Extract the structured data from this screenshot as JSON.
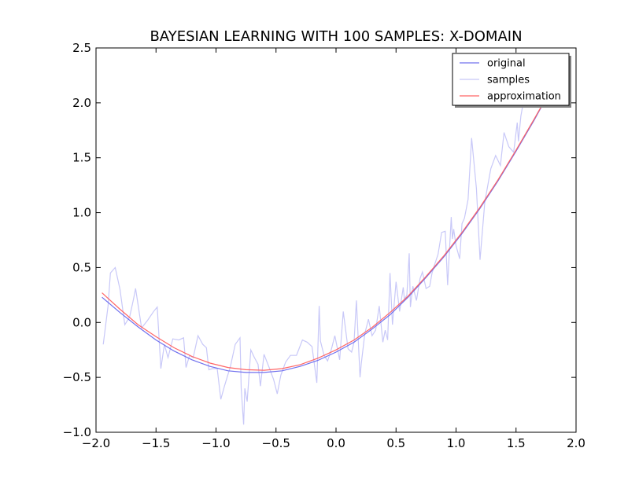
{
  "chart_data": {
    "type": "line",
    "title": "BAYESIAN LEARNING WITH 100 SAMPLES: X-DOMAIN",
    "xlabel": "",
    "ylabel": "",
    "xlim": [
      -2.0,
      2.0
    ],
    "ylim": [
      -1.0,
      2.5
    ],
    "xticks": [
      -2.0,
      -1.5,
      -1.0,
      -0.5,
      0.0,
      0.5,
      1.0,
      1.5,
      2.0
    ],
    "xtick_labels": [
      "−2.0",
      "−1.5",
      "−1.0",
      "−0.5",
      "0.0",
      "0.5",
      "1.0",
      "1.5",
      "2.0"
    ],
    "yticks": [
      -1.0,
      -0.5,
      0.0,
      0.5,
      1.0,
      1.5,
      2.0,
      2.5
    ],
    "ytick_labels": [
      "−1.0",
      "−0.5",
      "0.0",
      "0.5",
      "1.0",
      "1.5",
      "2.0",
      "2.5"
    ],
    "grid": false,
    "legend_position": "top-right",
    "colors": {
      "original": "#7070ee",
      "samples": "#c8c8f8",
      "approximation": "#ff6666"
    },
    "series": [
      {
        "name": "original",
        "x": [
          -1.95,
          -1.8,
          -1.65,
          -1.5,
          -1.35,
          -1.2,
          -1.05,
          -0.9,
          -0.75,
          -0.6,
          -0.45,
          -0.3,
          -0.15,
          0.0,
          0.15,
          0.3,
          0.45,
          0.6,
          0.75,
          0.9,
          1.05,
          1.2,
          1.35,
          1.5,
          1.65,
          1.8,
          1.85
        ],
        "y": [
          0.23,
          0.09,
          -0.04,
          -0.16,
          -0.26,
          -0.34,
          -0.4,
          -0.44,
          -0.455,
          -0.455,
          -0.44,
          -0.4,
          -0.345,
          -0.27,
          -0.18,
          -0.06,
          0.07,
          0.23,
          0.41,
          0.6,
          0.81,
          1.04,
          1.29,
          1.56,
          1.84,
          2.14,
          2.25
        ]
      },
      {
        "name": "samples",
        "x": [
          -1.94,
          -1.9,
          -1.88,
          -1.84,
          -1.8,
          -1.76,
          -1.72,
          -1.69,
          -1.67,
          -1.62,
          -1.57,
          -1.52,
          -1.49,
          -1.46,
          -1.43,
          -1.4,
          -1.36,
          -1.31,
          -1.27,
          -1.25,
          -1.22,
          -1.19,
          -1.15,
          -1.11,
          -1.08,
          -1.06,
          -1.03,
          -0.99,
          -0.96,
          -0.93,
          -0.88,
          -0.84,
          -0.8,
          -0.79,
          -0.77,
          -0.76,
          -0.74,
          -0.71,
          -0.68,
          -0.65,
          -0.63,
          -0.6,
          -0.55,
          -0.52,
          -0.49,
          -0.46,
          -0.42,
          -0.38,
          -0.33,
          -0.28,
          -0.24,
          -0.2,
          -0.16,
          -0.14,
          -0.13,
          -0.1,
          -0.07,
          -0.04,
          -0.01,
          0.03,
          0.06,
          0.1,
          0.13,
          0.15,
          0.17,
          0.2,
          0.21,
          0.24,
          0.27,
          0.3,
          0.33,
          0.36,
          0.39,
          0.41,
          0.43,
          0.45,
          0.47,
          0.5,
          0.53,
          0.56,
          0.57,
          0.59,
          0.61,
          0.62,
          0.64,
          0.67,
          0.7,
          0.72,
          0.75,
          0.78,
          0.8,
          0.82,
          0.85,
          0.88,
          0.91,
          0.93,
          0.96,
          0.97,
          0.98,
          1.0,
          1.03,
          1.05,
          1.07,
          1.1,
          1.13,
          1.17,
          1.2,
          1.24,
          1.29,
          1.33,
          1.37,
          1.4,
          1.44,
          1.48,
          1.51,
          1.52,
          1.54,
          1.56,
          1.59,
          1.62,
          1.65,
          1.69,
          1.72,
          1.75,
          1.78,
          1.82
        ],
        "y": [
          -0.2,
          0.15,
          0.45,
          0.5,
          0.3,
          -0.02,
          0.05,
          0.2,
          0.31,
          -0.05,
          0.02,
          0.1,
          0.14,
          -0.42,
          -0.2,
          -0.32,
          -0.15,
          -0.16,
          -0.14,
          -0.41,
          -0.3,
          -0.32,
          -0.12,
          -0.2,
          -0.23,
          -0.43,
          -0.42,
          -0.42,
          -0.7,
          -0.58,
          -0.4,
          -0.2,
          -0.14,
          -0.6,
          -0.93,
          -0.6,
          -0.72,
          -0.25,
          -0.32,
          -0.38,
          -0.58,
          -0.29,
          -0.43,
          -0.52,
          -0.65,
          -0.48,
          -0.36,
          -0.3,
          -0.3,
          -0.16,
          -0.18,
          -0.22,
          -0.55,
          0.15,
          -0.17,
          -0.3,
          -0.35,
          -0.25,
          -0.12,
          -0.34,
          0.1,
          -0.24,
          -0.27,
          -0.18,
          0.2,
          -0.5,
          -0.38,
          -0.1,
          0.03,
          -0.12,
          -0.07,
          0.15,
          -0.18,
          -0.07,
          -0.16,
          0.45,
          -0.02,
          0.37,
          0.1,
          0.32,
          0.21,
          0.25,
          0.63,
          0.14,
          0.33,
          0.2,
          0.4,
          0.46,
          0.31,
          0.33,
          0.45,
          0.52,
          0.62,
          0.82,
          0.83,
          0.34,
          0.96,
          0.76,
          0.85,
          0.7,
          0.58,
          0.9,
          0.95,
          1.12,
          1.68,
          1.22,
          0.57,
          1.1,
          1.4,
          1.52,
          1.43,
          1.73,
          1.6,
          1.55,
          1.82,
          1.65,
          1.88,
          2.0,
          2.02,
          2.06,
          2.09,
          2.12,
          2.15,
          2.18,
          2.21,
          2.24
        ],
        "stroke": "#c8c8f8"
      },
      {
        "name": "approximation",
        "x": [
          -1.95,
          -1.8,
          -1.65,
          -1.5,
          -1.35,
          -1.2,
          -1.05,
          -0.9,
          -0.75,
          -0.6,
          -0.45,
          -0.3,
          -0.15,
          0.0,
          0.15,
          0.3,
          0.45,
          0.6,
          0.75,
          0.9,
          1.05,
          1.2,
          1.35,
          1.5,
          1.65,
          1.8,
          1.85
        ],
        "y": [
          0.27,
          0.12,
          -0.02,
          -0.13,
          -0.23,
          -0.31,
          -0.37,
          -0.41,
          -0.43,
          -0.435,
          -0.42,
          -0.385,
          -0.325,
          -0.25,
          -0.16,
          -0.045,
          0.09,
          0.24,
          0.42,
          0.61,
          0.82,
          1.05,
          1.3,
          1.57,
          1.85,
          2.14,
          2.24
        ]
      }
    ]
  }
}
